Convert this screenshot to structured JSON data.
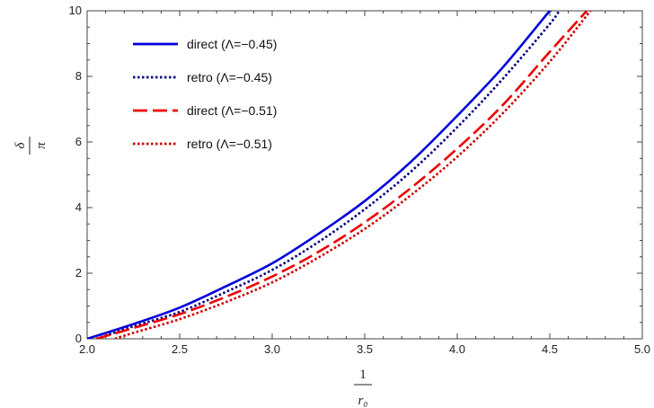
{
  "chart_data": {
    "type": "line",
    "xlabel": {
      "numerator": "1",
      "denominator": "r₀"
    },
    "ylabel": {
      "numerator": "δ",
      "denominator": "π"
    },
    "xlim": [
      2.0,
      5.0
    ],
    "ylim": [
      0,
      10
    ],
    "x_ticks": [
      "2.0",
      "2.5",
      "3.0",
      "3.5",
      "4.0",
      "4.5",
      "5.0"
    ],
    "y_ticks": [
      "0",
      "2",
      "4",
      "6",
      "8",
      "10"
    ],
    "legend_position": "top-left",
    "grid": false,
    "series": [
      {
        "name": "direct (Λ=−0.45)",
        "color": "#0000dd",
        "dash": "solid",
        "x": [
          2.0,
          2.25,
          2.5,
          2.75,
          3.0,
          3.25,
          3.5,
          3.75,
          4.0,
          4.25,
          4.5,
          4.51
        ],
        "y": [
          0.0,
          0.45,
          0.95,
          1.6,
          2.3,
          3.2,
          4.2,
          5.4,
          6.8,
          8.3,
          10.0,
          10.0
        ]
      },
      {
        "name": "retro (Λ=−0.45)",
        "color": "#000080",
        "dash": "dotted",
        "x": [
          2.05,
          2.25,
          2.5,
          2.75,
          3.0,
          3.25,
          3.5,
          3.75,
          4.0,
          4.25,
          4.5,
          4.55
        ],
        "y": [
          0.0,
          0.38,
          0.82,
          1.43,
          2.1,
          2.95,
          3.95,
          5.1,
          6.45,
          7.95,
          9.6,
          10.0
        ]
      },
      {
        "name": "direct (Λ=−0.51)",
        "color": "#ee0000",
        "dash": "dashed",
        "x": [
          2.05,
          2.25,
          2.5,
          2.75,
          3.0,
          3.25,
          3.5,
          3.75,
          4.0,
          4.25,
          4.5,
          4.7
        ],
        "y": [
          0.0,
          0.33,
          0.75,
          1.28,
          1.9,
          2.65,
          3.55,
          4.6,
          5.8,
          7.15,
          8.75,
          10.0
        ]
      },
      {
        "name": "retro (Λ=−0.51)",
        "color": "#cc0000",
        "dash": "dotted",
        "x": [
          2.15,
          2.25,
          2.5,
          2.75,
          3.0,
          3.25,
          3.5,
          3.75,
          4.0,
          4.25,
          4.5,
          4.72
        ],
        "y": [
          0.0,
          0.18,
          0.6,
          1.12,
          1.72,
          2.48,
          3.35,
          4.38,
          5.55,
          6.9,
          8.45,
          10.0
        ]
      }
    ]
  }
}
